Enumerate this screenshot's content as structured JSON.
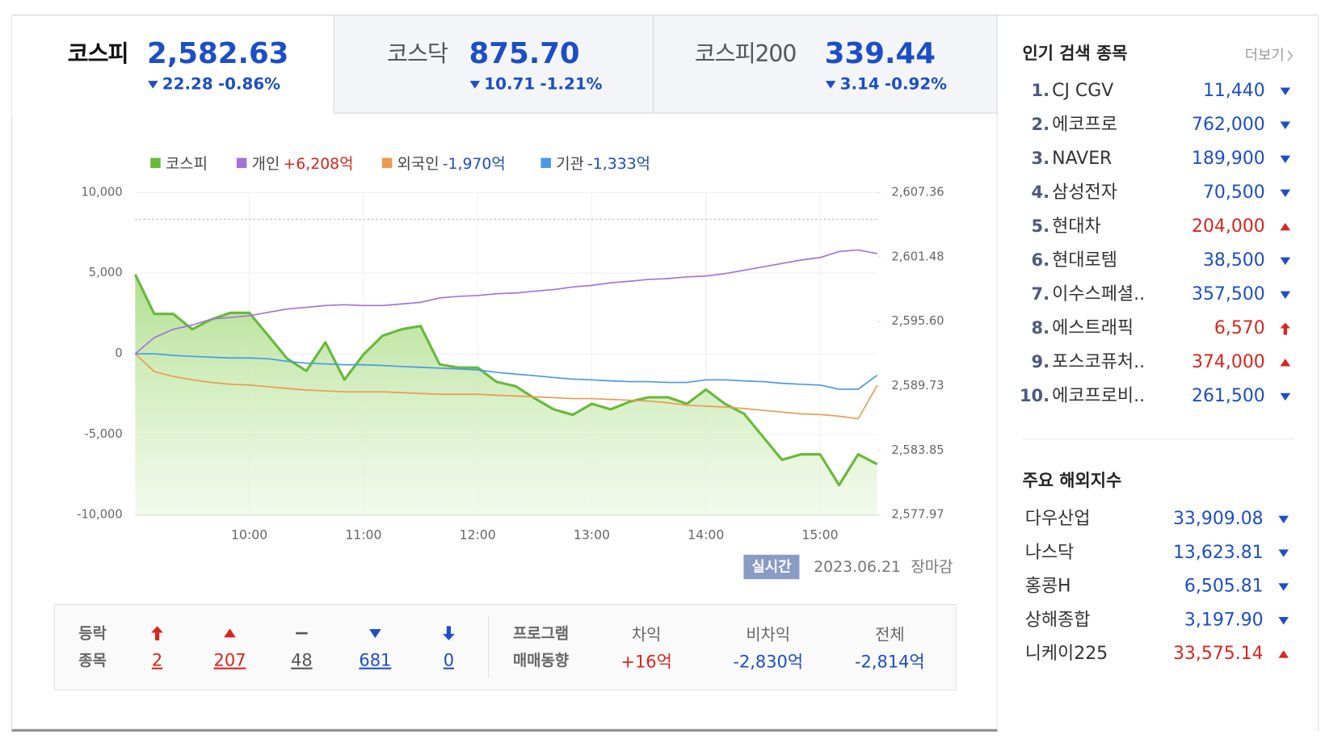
{
  "tabs": [
    {
      "name": "코스피",
      "value": "2,582.63",
      "change": "22.28",
      "rate": "-0.86%",
      "direction": "down",
      "active": true
    },
    {
      "name": "코스닥",
      "value": "875.70",
      "change": "10.71",
      "rate": "-1.21%",
      "direction": "down",
      "active": false
    },
    {
      "name": "코스피200",
      "value": "339.44",
      "change": "3.14",
      "rate": "-0.92%",
      "direction": "down",
      "active": false
    }
  ],
  "chart_data": {
    "type": "line",
    "x": [
      "09:00",
      "09:10",
      "09:20",
      "09:30",
      "09:40",
      "09:50",
      "10:00",
      "10:10",
      "10:20",
      "10:30",
      "10:40",
      "10:50",
      "11:00",
      "11:10",
      "11:20",
      "11:30",
      "11:40",
      "11:50",
      "12:00",
      "12:10",
      "12:20",
      "12:30",
      "12:40",
      "12:50",
      "13:00",
      "13:10",
      "13:20",
      "13:30",
      "13:40",
      "13:50",
      "14:00",
      "14:10",
      "14:20",
      "14:30",
      "14:40",
      "14:50",
      "15:00",
      "15:10",
      "15:20",
      "15:30"
    ],
    "xlim": [
      "09:00",
      "15:30"
    ],
    "xticks": [
      "10:00",
      "11:00",
      "12:00",
      "13:00",
      "14:00",
      "15:00"
    ],
    "ylim": [
      -10000,
      10000
    ],
    "yticks": [
      {
        "value": -10000,
        "label": "-10,000"
      },
      {
        "value": -5000,
        "label": "-5,000"
      },
      0,
      {
        "value": 5000,
        "label": "5,000"
      },
      {
        "value": 10000,
        "label": "10,000"
      }
    ],
    "y2lim": [
      2577.97,
      2607.36
    ],
    "y2ticks": [
      {
        "value": 2577.97,
        "label": "2,577.97"
      },
      {
        "value": 2583.85,
        "label": "2,583.85"
      },
      {
        "value": 2589.73,
        "label": "2,589.73"
      },
      {
        "value": 2595.6,
        "label": "2,595.60"
      },
      {
        "value": 2601.48,
        "label": "2,601.48"
      },
      {
        "value": 2607.36,
        "label": "2,607.36"
      }
    ],
    "reference_line": {
      "value": 2604.91,
      "axis": "y2"
    },
    "grid": true,
    "series": [
      {
        "name": "코스피",
        "color": "#68b93a",
        "axis": "y2",
        "area": true,
        "values": [
          2599.9,
          2596.3,
          2596.3,
          2594.9,
          2595.8,
          2596.4,
          2596.4,
          2594.3,
          2592.2,
          2591.1,
          2593.7,
          2590.3,
          2592.6,
          2594.3,
          2594.9,
          2595.2,
          2591.7,
          2591.4,
          2591.4,
          2590.1,
          2589.7,
          2588.6,
          2587.6,
          2587.1,
          2588.1,
          2587.6,
          2588.3,
          2588.7,
          2588.7,
          2588.1,
          2589.4,
          2588.1,
          2587.2,
          2585.1,
          2583.0,
          2583.5,
          2583.5,
          2580.7,
          2583.5,
          2582.6
        ]
      },
      {
        "name": "개인",
        "color": "#a373d8",
        "total": "+6,208억",
        "total_color": "#d9251d",
        "values": [
          0,
          1000,
          1520,
          1780,
          2150,
          2250,
          2360,
          2570,
          2780,
          2880,
          2990,
          3040,
          2990,
          2990,
          3090,
          3190,
          3460,
          3560,
          3610,
          3720,
          3770,
          3880,
          3980,
          4140,
          4240,
          4400,
          4500,
          4610,
          4660,
          4770,
          4820,
          4970,
          5180,
          5390,
          5600,
          5810,
          5970,
          6340,
          6440,
          6208
        ]
      },
      {
        "name": "외국인",
        "color": "#eb9a50",
        "total": "-1,970억",
        "total_color": "#1c4ec5",
        "values": [
          0,
          -1100,
          -1410,
          -1620,
          -1780,
          -1890,
          -1940,
          -2040,
          -2150,
          -2250,
          -2300,
          -2360,
          -2360,
          -2360,
          -2410,
          -2460,
          -2510,
          -2510,
          -2510,
          -2570,
          -2620,
          -2670,
          -2720,
          -2780,
          -2780,
          -2830,
          -2880,
          -2930,
          -3040,
          -3190,
          -3250,
          -3300,
          -3400,
          -3510,
          -3610,
          -3720,
          -3770,
          -3870,
          -4030,
          -1970
        ]
      },
      {
        "name": "기관",
        "color": "#4a98e8",
        "total": "-1,333억",
        "total_color": "#1c4ec5",
        "values": [
          0,
          0,
          -100,
          -160,
          -210,
          -260,
          -260,
          -310,
          -470,
          -580,
          -630,
          -680,
          -680,
          -730,
          -790,
          -840,
          -890,
          -940,
          -1000,
          -1150,
          -1260,
          -1360,
          -1470,
          -1570,
          -1620,
          -1680,
          -1730,
          -1730,
          -1780,
          -1780,
          -1620,
          -1620,
          -1680,
          -1730,
          -1830,
          -1890,
          -1940,
          -2200,
          -2200,
          -1333
        ]
      }
    ]
  },
  "status": {
    "badge": "실시간",
    "date": "2023.06.21",
    "state": "장마감"
  },
  "breadth": {
    "label_top": "등락",
    "label_bottom": "종목",
    "items": [
      {
        "count": "2",
        "direction": "upper"
      },
      {
        "count": "207",
        "direction": "up"
      },
      {
        "count": "48",
        "direction": "flat"
      },
      {
        "count": "681",
        "direction": "down"
      },
      {
        "count": "0",
        "direction": "lower"
      }
    ]
  },
  "program": {
    "label_top": "프로그램",
    "label_bottom": "매매동향",
    "columns": [
      {
        "header": "차익",
        "value": "+16억",
        "direction": "up"
      },
      {
        "header": "비차익",
        "value": "-2,830억",
        "direction": "down"
      },
      {
        "header": "전체",
        "value": "-2,814억",
        "direction": "down"
      }
    ]
  },
  "popular": {
    "title": "인기 검색 종목",
    "more": "더보기",
    "items": [
      {
        "rank": "1.",
        "name": "CJ CGV",
        "price": "11,440",
        "direction": "down"
      },
      {
        "rank": "2.",
        "name": "에코프로",
        "price": "762,000",
        "direction": "down"
      },
      {
        "rank": "3.",
        "name": "NAVER",
        "price": "189,900",
        "direction": "down"
      },
      {
        "rank": "4.",
        "name": "삼성전자",
        "price": "70,500",
        "direction": "down"
      },
      {
        "rank": "5.",
        "name": "현대차",
        "price": "204,000",
        "direction": "up"
      },
      {
        "rank": "6.",
        "name": "현대로템",
        "price": "38,500",
        "direction": "down"
      },
      {
        "rank": "7.",
        "name": "이수스페셜..",
        "price": "357,500",
        "direction": "down"
      },
      {
        "rank": "8.",
        "name": "에스트래픽",
        "price": "6,570",
        "direction": "upper"
      },
      {
        "rank": "9.",
        "name": "포스코퓨처..",
        "price": "374,000",
        "direction": "up"
      },
      {
        "rank": "10.",
        "name": "에코프로비..",
        "price": "261,500",
        "direction": "down"
      }
    ]
  },
  "world": {
    "title": "주요 해외지수",
    "items": [
      {
        "name": "다우산업",
        "value": "33,909.08",
        "direction": "down"
      },
      {
        "name": "나스닥",
        "value": "13,623.81",
        "direction": "down"
      },
      {
        "name": "홍콩H",
        "value": "6,505.81",
        "direction": "down"
      },
      {
        "name": "상해종합",
        "value": "3,197.90",
        "direction": "down"
      },
      {
        "name": "니케이225",
        "value": "33,575.14",
        "direction": "up"
      }
    ]
  }
}
